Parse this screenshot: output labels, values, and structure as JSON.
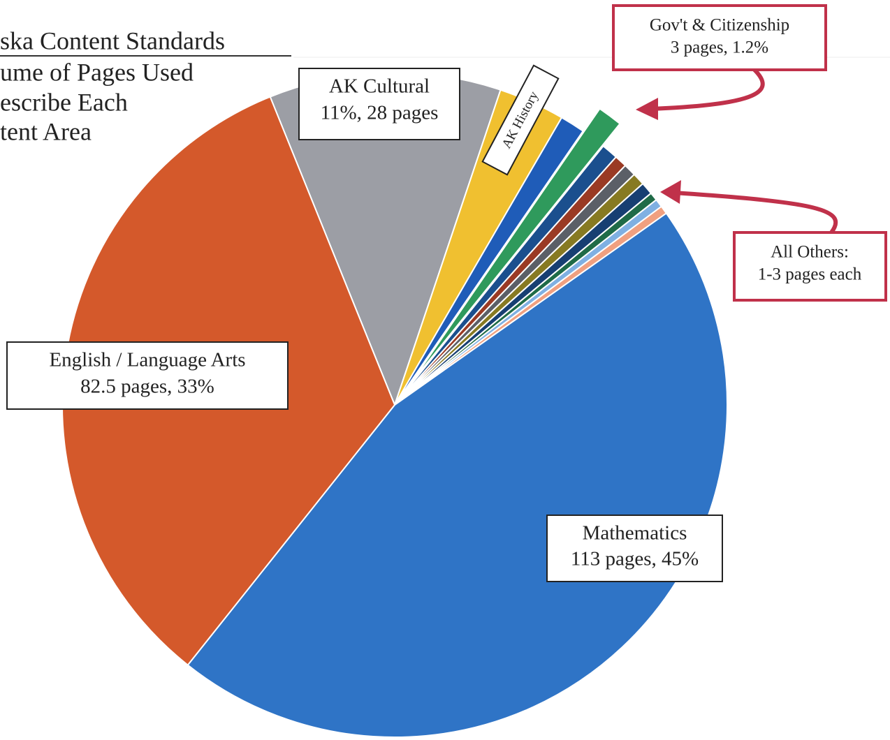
{
  "chart_data": {
    "type": "pie",
    "title_lines": [
      "ska Content Standards",
      "ume of Pages Used",
      "escribe Each",
      "tent Area"
    ],
    "categories": [
      "AK Cultural",
      "AK History",
      null,
      "Gov't & Citizenship",
      null,
      null,
      null,
      null,
      null,
      null,
      null,
      null,
      "Mathematics",
      "English / Language Arts"
    ],
    "values": [
      28,
      8,
      3,
      3,
      2,
      1.5,
      1.5,
      1.5,
      1.5,
      1,
      1,
      1,
      113,
      82.5
    ],
    "value_labels": [
      "11%, 28 pages",
      null,
      null,
      "3 pages, 1.2%",
      null,
      null,
      null,
      null,
      null,
      null,
      null,
      null,
      "113 pages, 45%",
      "82.5 pages, 33%"
    ],
    "colors": [
      "#9c9ea5",
      "#f0c030",
      "#1f5cb8",
      "#2f9a5c",
      "#1b4f8e",
      "#9a3a24",
      "#5b5f67",
      "#877a22",
      "#173f72",
      "#1f6b47",
      "#7fb0e2",
      "#f0a080",
      "#2f74c6",
      "#d4592b"
    ],
    "exploded": [
      3
    ],
    "annotations": [
      "All Others:",
      "1-3 pages each"
    ]
  }
}
